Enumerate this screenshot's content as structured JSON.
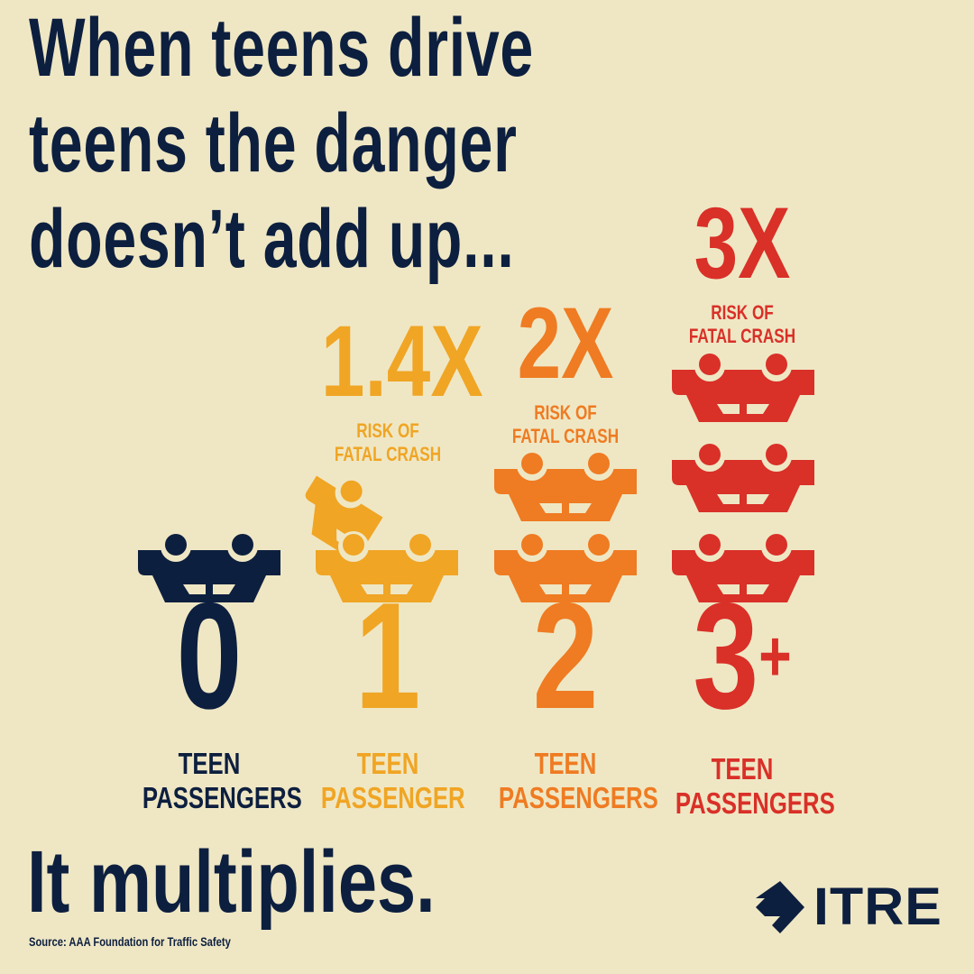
{
  "title": {
    "line1": "When teens drive",
    "line2": "teens the danger",
    "line3": "doesn’t add up..."
  },
  "colors": {
    "background": "#efe7c4",
    "navy": "#0d1f3f",
    "yellow": "#f0a524",
    "orange": "#ef7b22",
    "red": "#d93028"
  },
  "columns": [
    {
      "number": "0",
      "label1": "TEEN",
      "label2": "PASSENGERS",
      "cars": 1,
      "color": "#0d1f3f"
    },
    {
      "multiplier": "1.4X",
      "risk1": "RISK OF",
      "risk2": "FATAL CRASH",
      "number": "1",
      "label1": "TEEN",
      "label2": "PASSENGER",
      "cars": 2,
      "color": "#f0a524"
    },
    {
      "multiplier": "2X",
      "risk1": "RISK OF",
      "risk2": "FATAL CRASH",
      "number": "2",
      "label1": "TEEN",
      "label2": "PASSENGERS",
      "cars": 2,
      "color": "#ef7b22"
    },
    {
      "multiplier": "3X",
      "risk1": "RISK OF",
      "risk2": "FATAL CRASH",
      "number": "3",
      "superscript": "+",
      "label1": "TEEN",
      "label2": "PASSENGERS",
      "cars": 3,
      "color": "#d93028"
    }
  ],
  "tagline": "It multiplies.",
  "source": "Source: AAA Foundation for Traffic Safety",
  "logo": {
    "text": "ITRE",
    "icon": "arrow-diamond-icon"
  }
}
